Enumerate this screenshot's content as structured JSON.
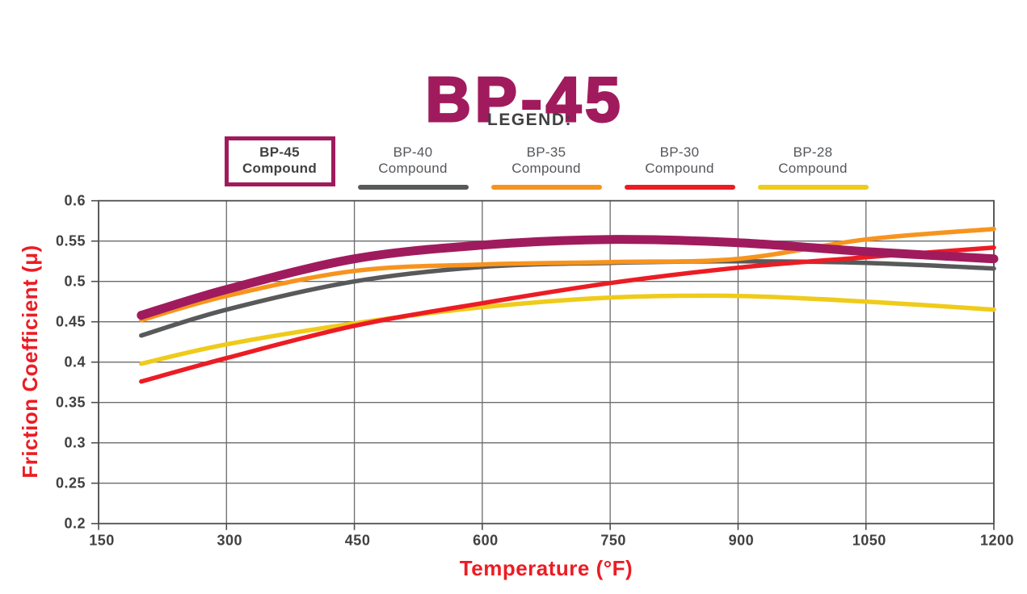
{
  "title": "BP-45",
  "colors": {
    "brand_purple": "#A01B5D",
    "text_dark": "#414042",
    "legend_text": "#54565A",
    "axis_title_red": "#EC1C24",
    "gridline": "#6A6B6E",
    "plot_border": "#4D4E50"
  },
  "legend": {
    "heading": "LEGEND:",
    "items": [
      {
        "line1": "BP-45",
        "line2": "Compound",
        "color": "#A01B5D",
        "style": "box"
      },
      {
        "line1": "BP-40",
        "line2": "Compound",
        "color": "#58595B",
        "style": "bar"
      },
      {
        "line1": "BP-35",
        "line2": "Compound",
        "color": "#F7941E",
        "style": "bar"
      },
      {
        "line1": "BP-30",
        "line2": "Compound",
        "color": "#EC1C24",
        "style": "bar"
      },
      {
        "line1": "BP-28",
        "line2": "Compound",
        "color": "#EFCB1A",
        "style": "bar"
      }
    ]
  },
  "chart_data": {
    "type": "line",
    "title": "BP-45",
    "xlabel": "Temperature (°F)",
    "ylabel": "Friction Coefficient (μ)",
    "xlim": [
      150,
      1200
    ],
    "ylim": [
      0.2,
      0.6
    ],
    "xticks": [
      150,
      300,
      450,
      600,
      750,
      900,
      1050,
      1200
    ],
    "yticks": [
      0.2,
      0.25,
      0.3,
      0.35,
      0.4,
      0.45,
      0.5,
      0.55,
      0.6
    ],
    "grid": true,
    "legend_position": "top",
    "x": [
      200,
      300,
      450,
      600,
      750,
      900,
      1050,
      1200
    ],
    "series": [
      {
        "name": "BP-45 Compound",
        "color": "#A01B5D",
        "stroke_width": 11,
        "values": [
          0.458,
          0.49,
          0.528,
          0.545,
          0.552,
          0.548,
          0.537,
          0.528
        ]
      },
      {
        "name": "BP-40 Compound",
        "color": "#58595B",
        "stroke_width": 5.5,
        "values": [
          0.433,
          0.465,
          0.5,
          0.518,
          0.523,
          0.525,
          0.523,
          0.516
        ]
      },
      {
        "name": "BP-35 Compound",
        "color": "#F7941E",
        "stroke_width": 5.5,
        "values": [
          0.452,
          0.482,
          0.513,
          0.521,
          0.524,
          0.528,
          0.552,
          0.565
        ]
      },
      {
        "name": "BP-30 Compound",
        "color": "#EC1C24",
        "stroke_width": 5.5,
        "values": [
          0.376,
          0.405,
          0.445,
          0.473,
          0.498,
          0.517,
          0.53,
          0.542
        ]
      },
      {
        "name": "BP-28 Compound",
        "color": "#EFCB1A",
        "stroke_width": 5.5,
        "values": [
          0.398,
          0.422,
          0.448,
          0.468,
          0.48,
          0.482,
          0.475,
          0.465
        ]
      }
    ],
    "draw_order": [
      4,
      1,
      2,
      3,
      0
    ]
  }
}
